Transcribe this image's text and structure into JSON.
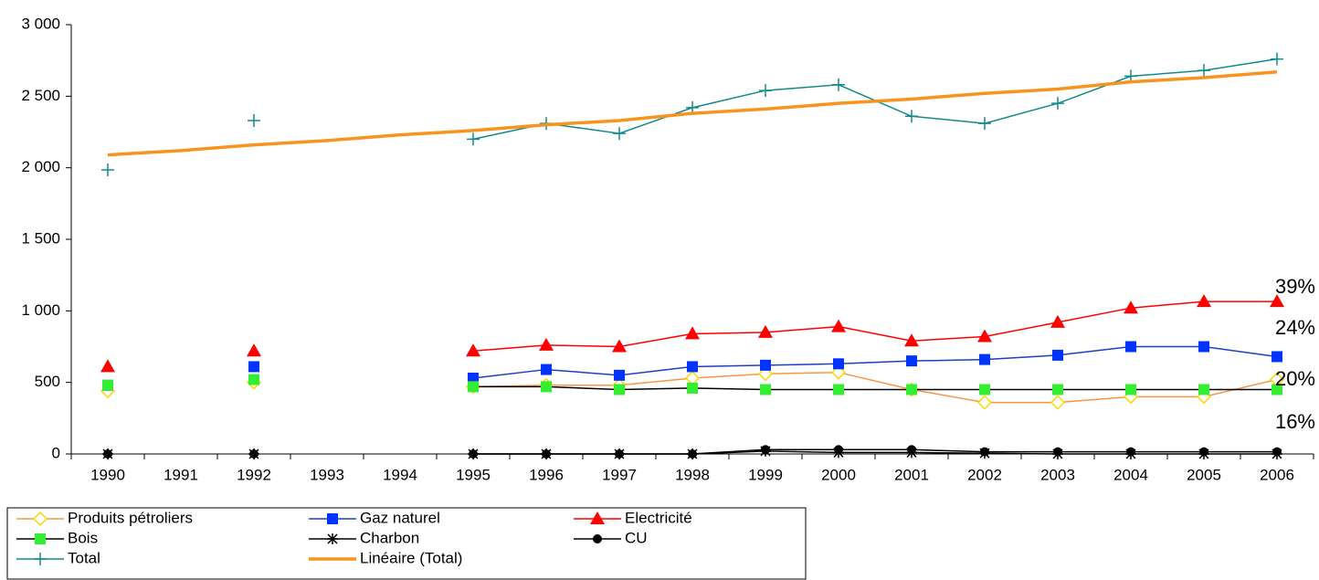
{
  "chart_data": {
    "type": "line",
    "categories": [
      "1990",
      "1991",
      "1992",
      "1993",
      "1994",
      "1995",
      "1996",
      "1997",
      "1998",
      "1999",
      "2000",
      "2001",
      "2002",
      "2003",
      "2004",
      "2005",
      "2006"
    ],
    "series": [
      {
        "name": "Produits pétroliers",
        "color": "#f79646",
        "marker": "diamond",
        "marker_color": "#ffd700",
        "values": [
          440,
          null,
          500,
          null,
          null,
          470,
          480,
          480,
          530,
          560,
          570,
          450,
          360,
          360,
          400,
          400,
          520
        ]
      },
      {
        "name": "Gaz naturel",
        "color": "#1f3fbf",
        "marker": "square",
        "marker_color": "#0033ff",
        "values": [
          480,
          null,
          610,
          null,
          null,
          530,
          590,
          550,
          610,
          620,
          630,
          650,
          660,
          690,
          750,
          750,
          680
        ]
      },
      {
        "name": "Electricité",
        "color": "#ff0000",
        "marker": "triangle",
        "marker_color": "#ff0000",
        "values": [
          610,
          null,
          720,
          null,
          null,
          720,
          760,
          750,
          840,
          850,
          890,
          790,
          820,
          920,
          1020,
          1065,
          1065
        ]
      },
      {
        "name": "Bois",
        "color": "#000000",
        "marker": "square",
        "marker_color": "#33ee33",
        "values": [
          480,
          null,
          520,
          null,
          null,
          470,
          470,
          450,
          460,
          450,
          450,
          450,
          450,
          450,
          450,
          450,
          450
        ]
      },
      {
        "name": "Charbon",
        "color": "#000000",
        "marker": "star",
        "marker_color": "#000000",
        "values": [
          0,
          null,
          0,
          null,
          null,
          0,
          0,
          0,
          0,
          20,
          10,
          10,
          5,
          0,
          0,
          0,
          0
        ]
      },
      {
        "name": "CU",
        "color": "#000000",
        "marker": "circle",
        "marker_color": "#000000",
        "values": [
          0,
          null,
          0,
          null,
          null,
          0,
          0,
          0,
          0,
          30,
          30,
          30,
          15,
          15,
          15,
          15,
          15
        ]
      },
      {
        "name": "Total",
        "color": "#138a8a",
        "marker": "plus",
        "marker_color": "#138a8a",
        "values": [
          1985,
          null,
          2330,
          null,
          null,
          2200,
          2310,
          2240,
          2420,
          2540,
          2580,
          2360,
          2310,
          2450,
          2640,
          2680,
          2760
        ]
      },
      {
        "name": "Linéaire (Total)",
        "color": "#f7941d",
        "marker": "none",
        "marker_color": "#f7941d",
        "values": [
          2090,
          2120,
          2160,
          2190,
          2230,
          2260,
          2300,
          2330,
          2380,
          2410,
          2450,
          2480,
          2520,
          2550,
          2600,
          2630,
          2670
        ]
      }
    ],
    "annotations": [
      "39%",
      "24%",
      "20%",
      "16%"
    ],
    "ylim": [
      0,
      3000
    ],
    "yticks": [
      0,
      500,
      {
        "value": 1000,
        "label": "1 000"
      },
      {
        "value": 1500,
        "label": "1 500"
      },
      {
        "value": 2000,
        "label": "2 000"
      },
      {
        "value": 2500,
        "label": "2 500"
      },
      {
        "value": 3000,
        "label": "3 000"
      }
    ],
    "grid": false,
    "legend": "bottom-left"
  }
}
